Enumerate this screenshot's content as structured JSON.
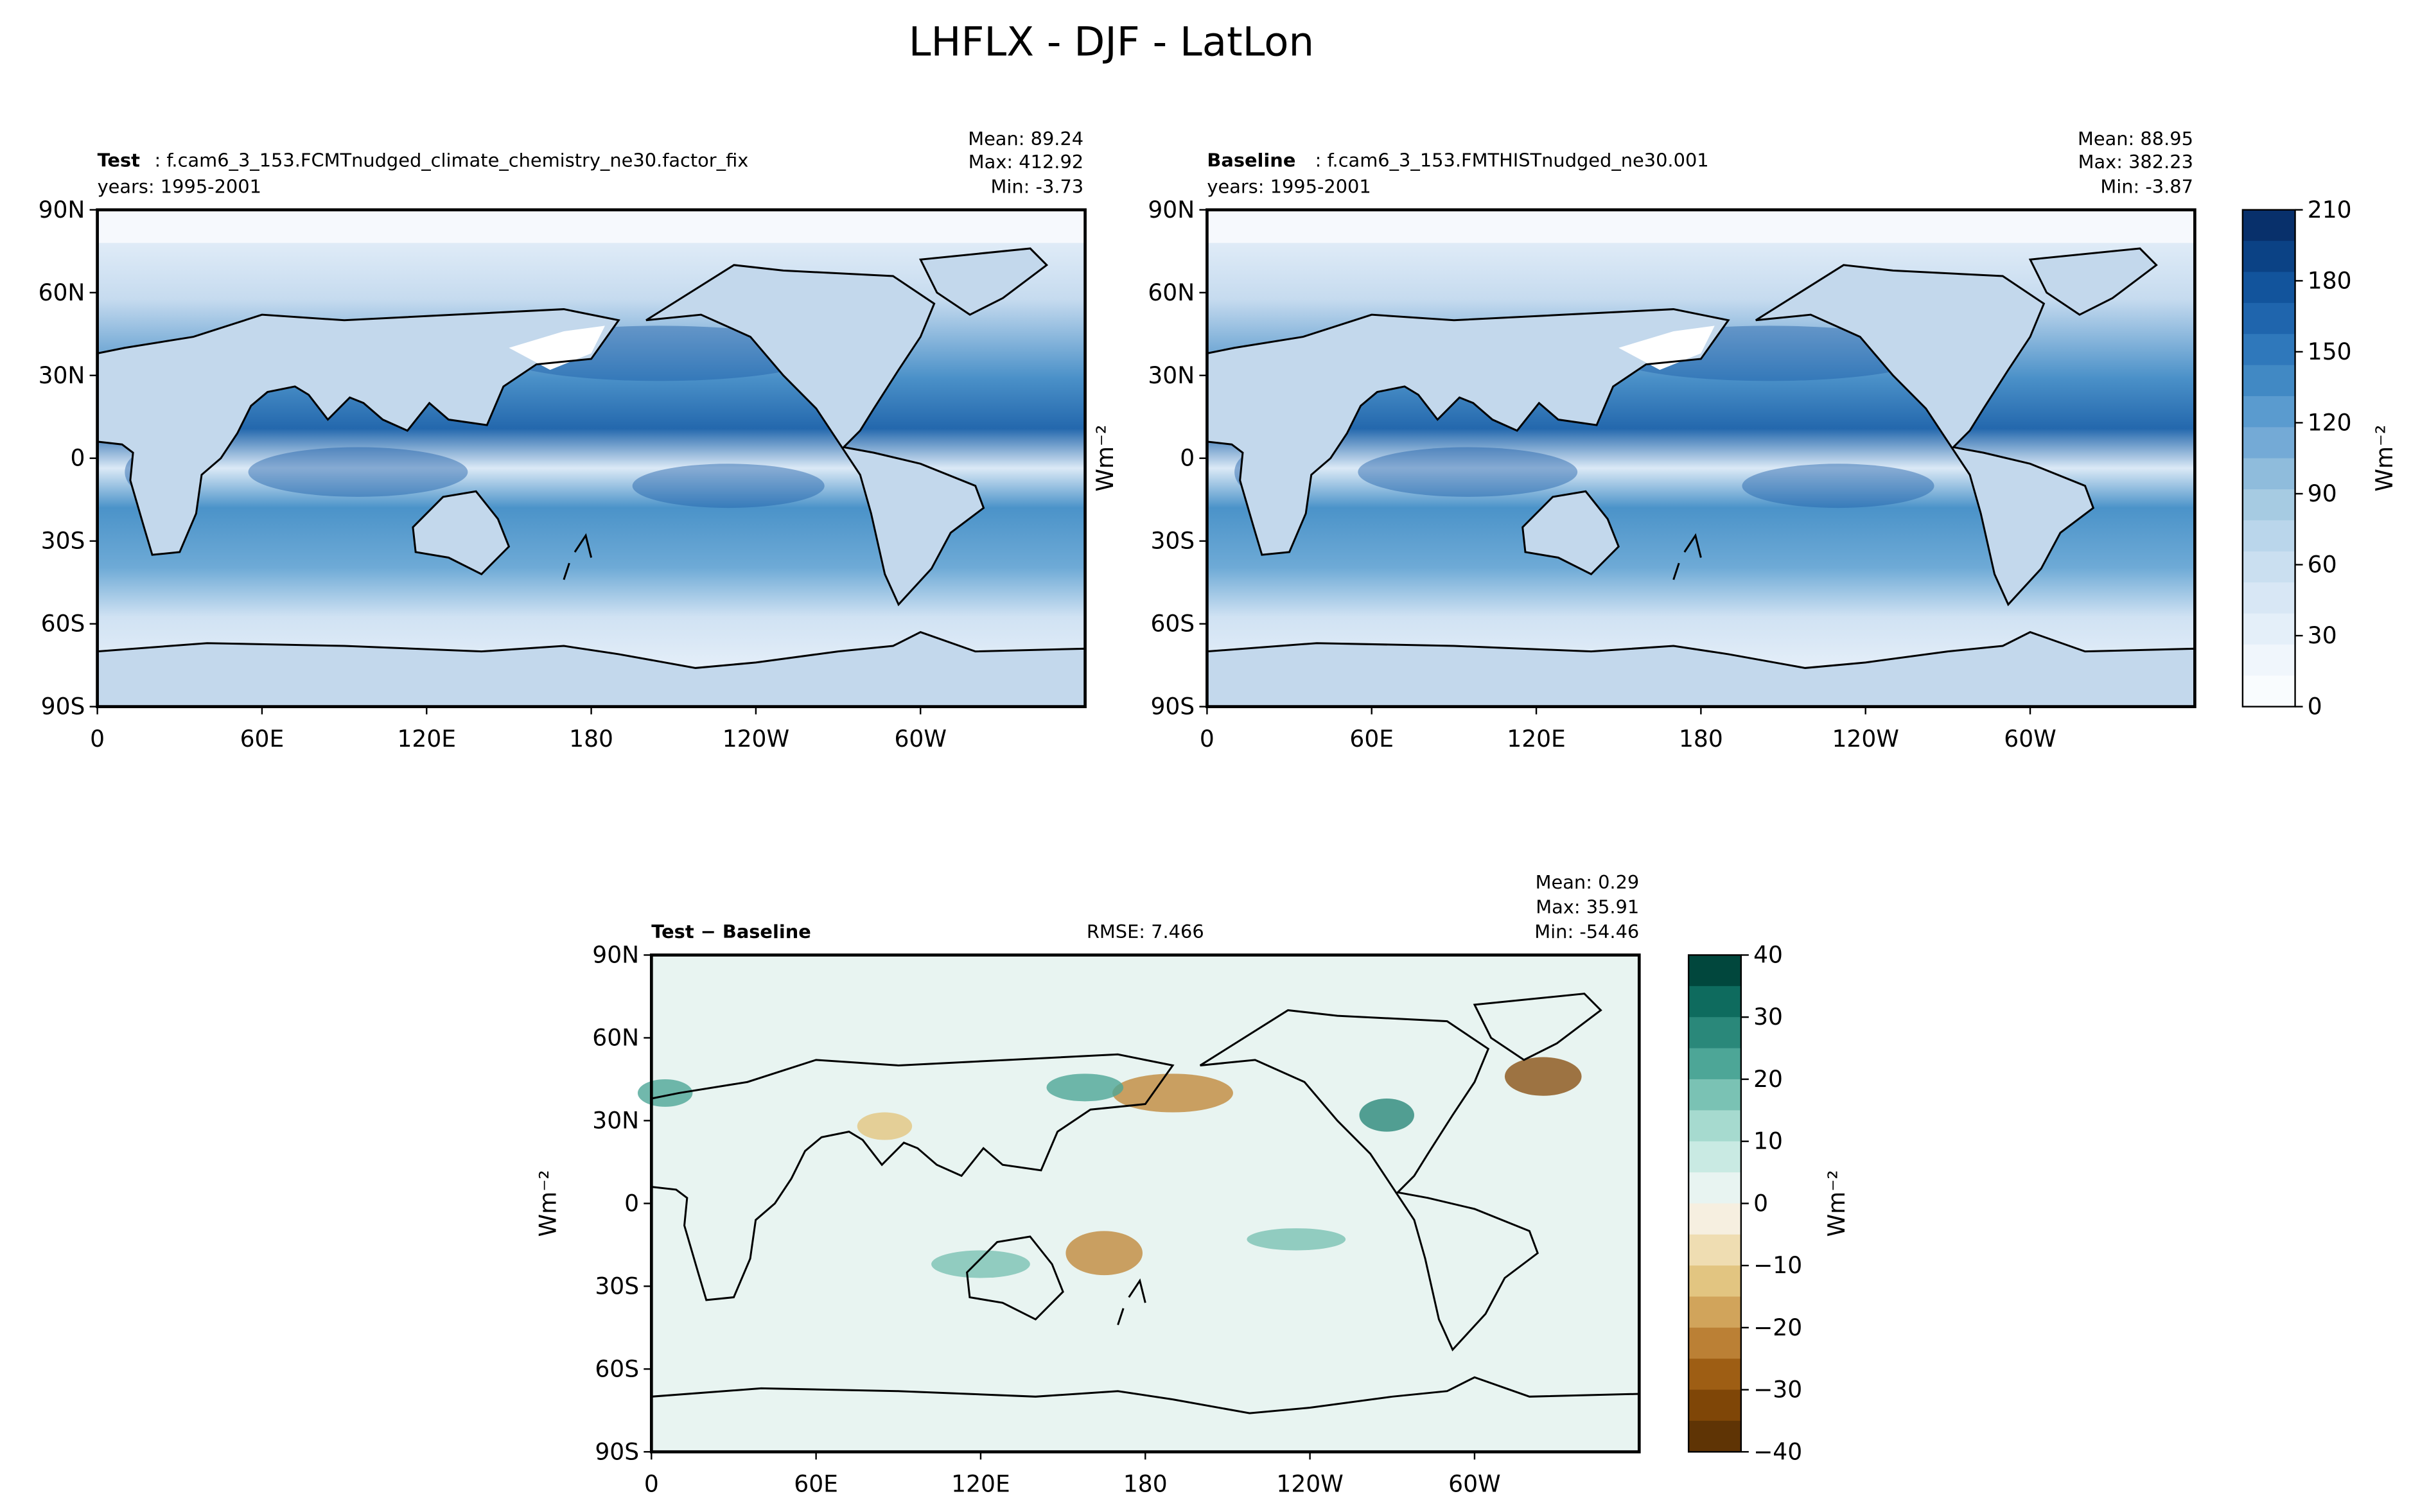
{
  "figure": {
    "title": "LHFLX - DJF - LatLon"
  },
  "panels": {
    "test": {
      "label_bold": "Test",
      "label_rest": ": f.cam6_3_153.FCMTnudged_climate_chemistry_ne30.factor_fix",
      "years": "years: 1995-2001",
      "stats": [
        "Mean: 89.24",
        "Max: 412.92",
        "Min: -3.73"
      ],
      "colormap": "Blues",
      "value_range": [
        0,
        210
      ]
    },
    "baseline": {
      "label_bold": "Baseline",
      "label_rest": ": f.cam6_3_153.FMTHISTnudged_ne30.001",
      "years": "years: 1995-2001",
      "stats": [
        "Mean: 88.95",
        "Max: 382.23",
        "Min: -3.87"
      ],
      "ylabel": "Wm⁻²",
      "colormap": "Blues",
      "value_range": [
        0,
        210
      ]
    },
    "diff": {
      "label_bold": "Test − Baseline",
      "rmse": "RMSE: 7.466",
      "stats": [
        "Mean:  0.29",
        "Max: 35.91",
        "Min: -54.46"
      ],
      "ylabel": "Wm⁻²",
      "colormap": "BrBG",
      "value_range": [
        -45,
        40
      ]
    }
  },
  "axes": {
    "lat_ticks": [
      "90N",
      "60N",
      "30N",
      "0",
      "30S",
      "60S",
      "90S"
    ],
    "lon_ticks": [
      "0",
      "60E",
      "120E",
      "180",
      "120W",
      "60W"
    ]
  },
  "colorbars": {
    "main": {
      "ticks": [
        "210",
        "180",
        "150",
        "120",
        "90",
        "60",
        "30",
        "0"
      ],
      "label": "Wm⁻²",
      "colors": [
        "#08306b",
        "#0b4285",
        "#12549c",
        "#1f65ad",
        "#2f78bb",
        "#4189c4",
        "#5a9bcf",
        "#74aad6",
        "#8fbcdc",
        "#a6cbe2",
        "#bad6eb",
        "#cadff0",
        "#d8e7f5",
        "#e4eff9",
        "#f0f6fc",
        "#f9fcfe"
      ]
    },
    "diff": {
      "ticks": [
        "40",
        "30",
        "20",
        "10",
        "0",
        "−10",
        "−20",
        "−30",
        "−40"
      ],
      "label": "Wm⁻²",
      "colors": [
        "#01473d",
        "#0e6b5e",
        "#2a887a",
        "#4da697",
        "#7ac2b4",
        "#a6dacf",
        "#c9eae3",
        "#e8f4f1",
        "#f6efe0",
        "#efddb2",
        "#e2c581",
        "#d1a45b",
        "#bb8035",
        "#9e5e14",
        "#7f4607",
        "#5f3405"
      ]
    }
  }
}
